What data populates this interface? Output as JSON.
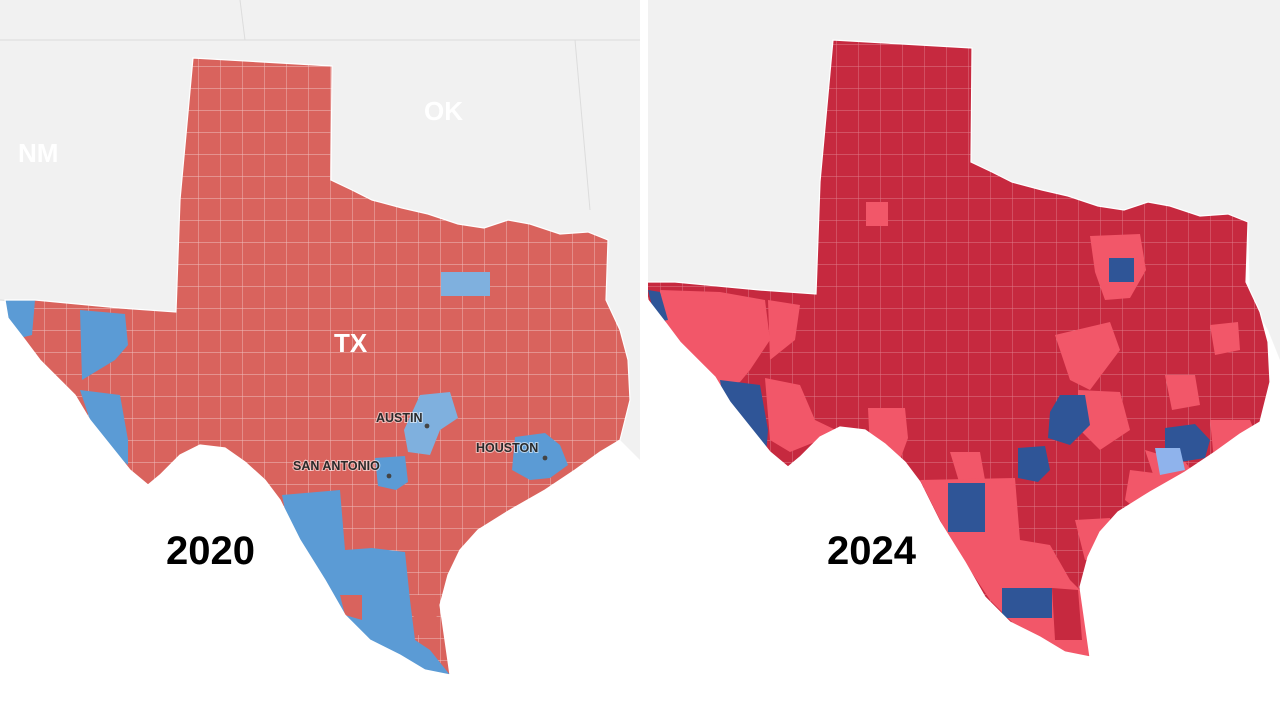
{
  "colors": {
    "bg_land": "#f1f1f1",
    "bg_water": "#ffffff",
    "border": "#d9d9d9",
    "county_line": "#f4d2d2",
    "rep_2020": "#d9635d",
    "dem_2020": "#5b9bd5",
    "dem_light_2020": "#7fb0de",
    "rep_strong_2024": "#c6293f",
    "rep_lean_2024": "#f25769",
    "dem_strong_2024": "#2f5597",
    "dem_lean_2024": "#8fb3ec",
    "state_label": "#ffffff",
    "city_label": "#2a2a2a",
    "year_label": "#000000"
  },
  "panels": [
    {
      "year": "2020",
      "state_label": "TX",
      "neighbor_labels": [
        "NM",
        "OK"
      ],
      "city_labels": [
        "AUSTIN",
        "SAN ANTONIO",
        "HOUSTON"
      ]
    },
    {
      "year": "2024"
    }
  ]
}
